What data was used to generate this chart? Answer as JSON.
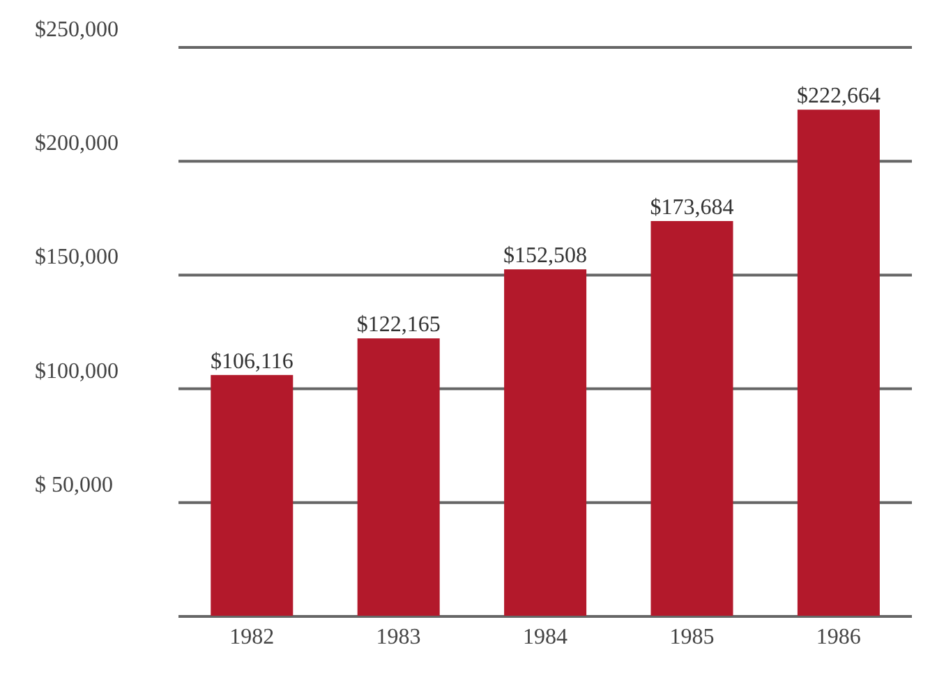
{
  "chart_data": {
    "type": "bar",
    "categories": [
      "1982",
      "1983",
      "1984",
      "1985",
      "1986"
    ],
    "values": [
      106116,
      122165,
      152508,
      173684,
      222664
    ],
    "value_labels": [
      "$106,116",
      "$122,165",
      "$152,508",
      "$173,684",
      "$222,664"
    ],
    "color": "#b3192b",
    "ylim": [
      0,
      250000
    ],
    "yticks": [
      {
        "value": 50000,
        "label": "$ 50,000"
      },
      {
        "value": 100000,
        "label": "$100,000"
      },
      {
        "value": 150000,
        "label": "$150,000"
      },
      {
        "value": 200000,
        "label": "$200,000"
      },
      {
        "value": 250000,
        "label": "$250,000"
      }
    ],
    "grid": "y"
  }
}
